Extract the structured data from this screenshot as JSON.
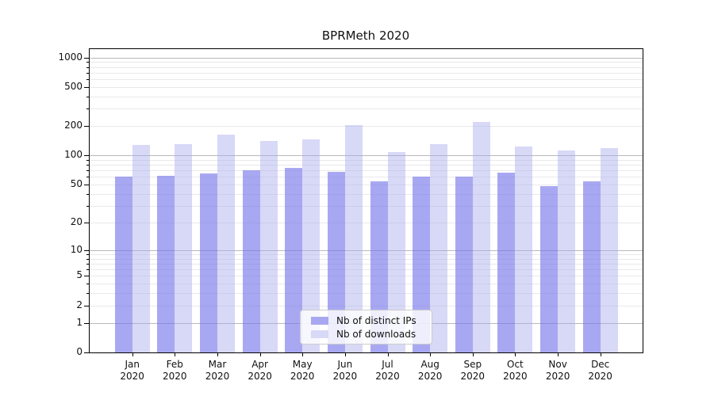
{
  "chart_data": {
    "type": "bar",
    "title": "BPRMeth 2020",
    "yscale": "log1p",
    "grid": "major decades + log minors",
    "legend_position": "inside lower-center",
    "categories": [
      "Jan",
      "Feb",
      "Mar",
      "Apr",
      "May",
      "Jun",
      "Jul",
      "Aug",
      "Sep",
      "Oct",
      "Nov",
      "Dec"
    ],
    "year": "2020",
    "series": [
      {
        "name": "Nb of distinct IPs",
        "color": "#a8a8f0",
        "values": [
          60,
          62,
          65,
          70,
          75,
          68,
          54,
          61,
          60,
          66,
          48,
          54
        ]
      },
      {
        "name": "Nb of downloads",
        "color": "#d8d8f7",
        "values": [
          128,
          130,
          164,
          140,
          146,
          205,
          108,
          131,
          220,
          124,
          112,
          118
        ]
      }
    ],
    "yticks": [
      0,
      1,
      2,
      5,
      10,
      20,
      50,
      100,
      200,
      500,
      1000
    ],
    "ylim": [
      0,
      1200
    ]
  },
  "colors": {
    "ips_fill": "rgba(115,115,234,0.62)",
    "downloads_fill": "rgba(168,168,237,0.45)",
    "grid_major": "#b9b9b9",
    "grid_minor": "#e9e9e9",
    "axis": "#000000",
    "text": "#111111"
  }
}
